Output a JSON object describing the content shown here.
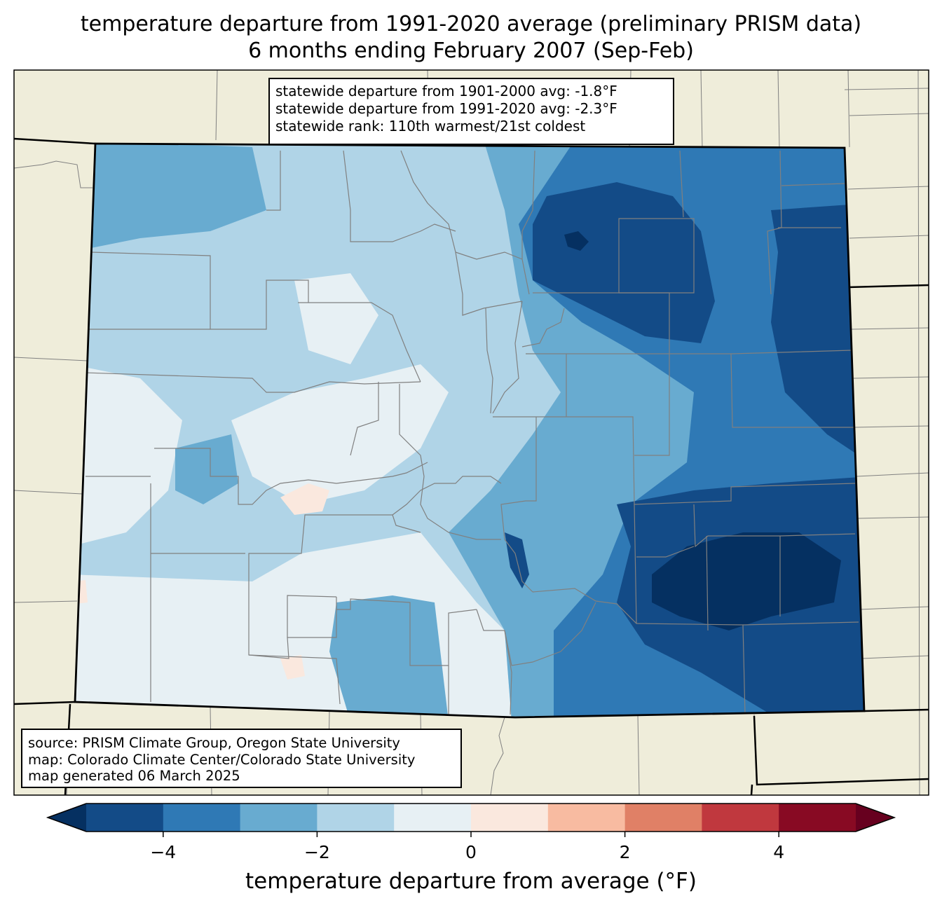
{
  "title": {
    "line1": "temperature departure from 1991-2020 average (preliminary PRISM data)",
    "line2": "6 months ending February 2007 (Sep-Feb)"
  },
  "stats": {
    "line1": "statewide departure from 1901-2000 avg: -1.8°F",
    "line2": "statewide departure from 1991-2020 avg: -2.3°F",
    "line3": "statewide rank: 110th warmest/21st coldest"
  },
  "source": {
    "line1": "source: PRISM Climate Group, Oregon State University",
    "line2": "map: Colorado Climate Center/Colorado State University",
    "line3": "map generated 06 March 2025"
  },
  "colorbar": {
    "label": "temperature departure from average (°F)",
    "min": -5,
    "max": 5,
    "ticks": [
      {
        "value": -4,
        "label": "−4"
      },
      {
        "value": -2,
        "label": "−2"
      },
      {
        "value": 0,
        "label": "0"
      },
      {
        "value": 2,
        "label": "2"
      },
      {
        "value": 4,
        "label": "4"
      }
    ],
    "colors": [
      "#053061",
      "#134b87",
      "#2f79b5",
      "#68abd0",
      "#b0d4e7",
      "#e7f0f4",
      "#fae8de",
      "#f8bba1",
      "#e08066",
      "#c0383e",
      "#880a23",
      "#67001f"
    ]
  },
  "map_colors": {
    "land_background": "#efedda",
    "state_border": "#000000",
    "county_border": "#808080"
  }
}
